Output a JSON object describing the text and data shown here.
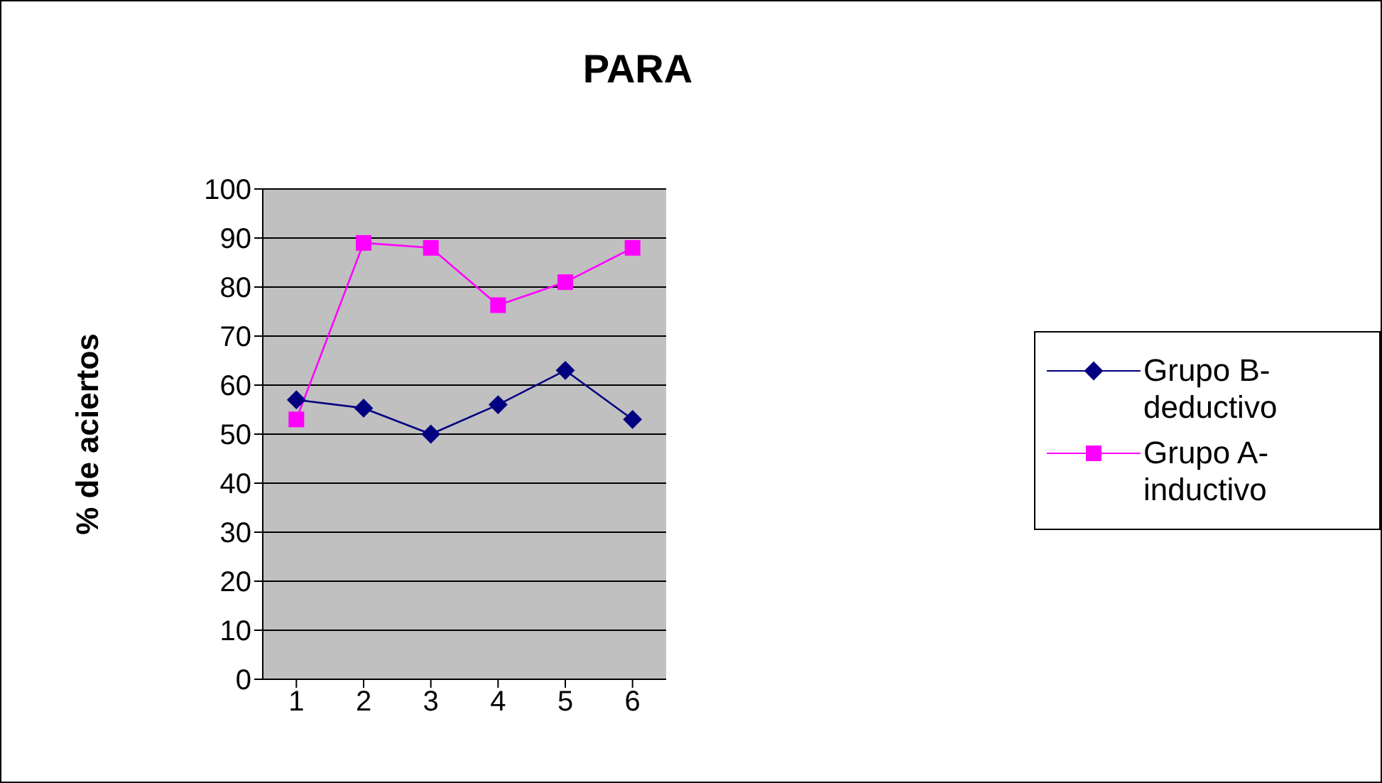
{
  "chart_data": {
    "type": "line",
    "title": "PARA",
    "ylabel": "% de aciertos",
    "categories": [
      "1",
      "2",
      "3",
      "4",
      "5",
      "6"
    ],
    "series": [
      {
        "name": "Grupo B-deductivo",
        "color": "#000080",
        "marker": "diamond",
        "values": [
          57,
          55.3,
          50,
          56,
          63,
          53
        ]
      },
      {
        "name": "Grupo A-inductivo",
        "color": "#ff00ff",
        "marker": "square",
        "values": [
          53,
          89,
          88,
          76.3,
          81,
          88
        ]
      }
    ],
    "ylim": [
      0,
      100
    ],
    "yticks": [
      0,
      10,
      20,
      30,
      40,
      50,
      60,
      70,
      80,
      90,
      100
    ],
    "grid": "y",
    "legend": "right"
  }
}
